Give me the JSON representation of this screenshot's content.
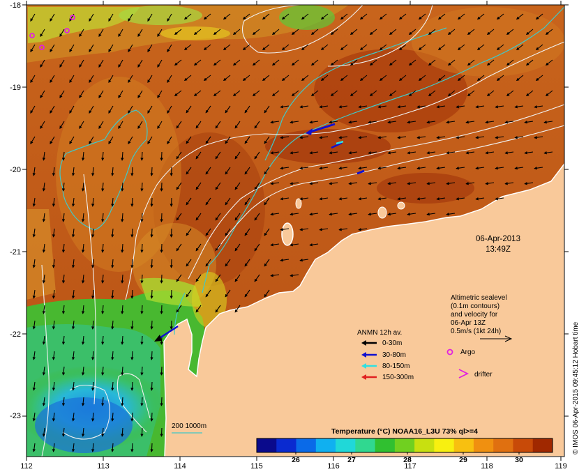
{
  "map": {
    "lon_ticks": [
      "112",
      "113",
      "114",
      "115",
      "116",
      "117",
      "118",
      "119"
    ],
    "lat_ticks": [
      "-18",
      "-19",
      "-20",
      "-21",
      "-22",
      "-23"
    ],
    "timestamp_date": "06-Apr-2013",
    "timestamp_time": "13:49Z",
    "land_color": "#f9c99a",
    "credit": "© IMOS 06-Apr-2015 09:45:12 Hobart time"
  },
  "altimetry": {
    "line1": "Altimetric sealevel",
    "line2": "(0.1m contours)",
    "line3": "and velocity for",
    "line4": "06-Apr 13Z",
    "line5": "0.5m/s (1kt 24h)"
  },
  "legend": {
    "title": "ANMN 12h av.",
    "items": [
      {
        "label": "0-30m",
        "color": "#000000"
      },
      {
        "label": "30-80m",
        "color": "#1010d0"
      },
      {
        "label": "80-150m",
        "color": "#30e0e0"
      },
      {
        "label": "150-300m",
        "color": "#e02020"
      }
    ],
    "argo_label": "Argo",
    "drifter_label": "drifter",
    "argo_color": "#e020e0",
    "drifter_color": "#e020e0"
  },
  "isobath": {
    "label": "200  1000m",
    "color": "#40c8c8"
  },
  "colorbar": {
    "title": "Temperature (°C) NOAA16_L3U 73% ql>=4",
    "ticks": [
      "26",
      "27",
      "28",
      "29",
      "30"
    ],
    "min": 25.3,
    "max": 30.6,
    "colors": [
      "#0a0a8c",
      "#0a2ad0",
      "#0a6ae8",
      "#10b0f0",
      "#20d8d8",
      "#30d890",
      "#30c030",
      "#70d020",
      "#c8e010",
      "#f8f010",
      "#f8c010",
      "#f09010",
      "#e07010",
      "#c84a08",
      "#a02800"
    ]
  }
}
